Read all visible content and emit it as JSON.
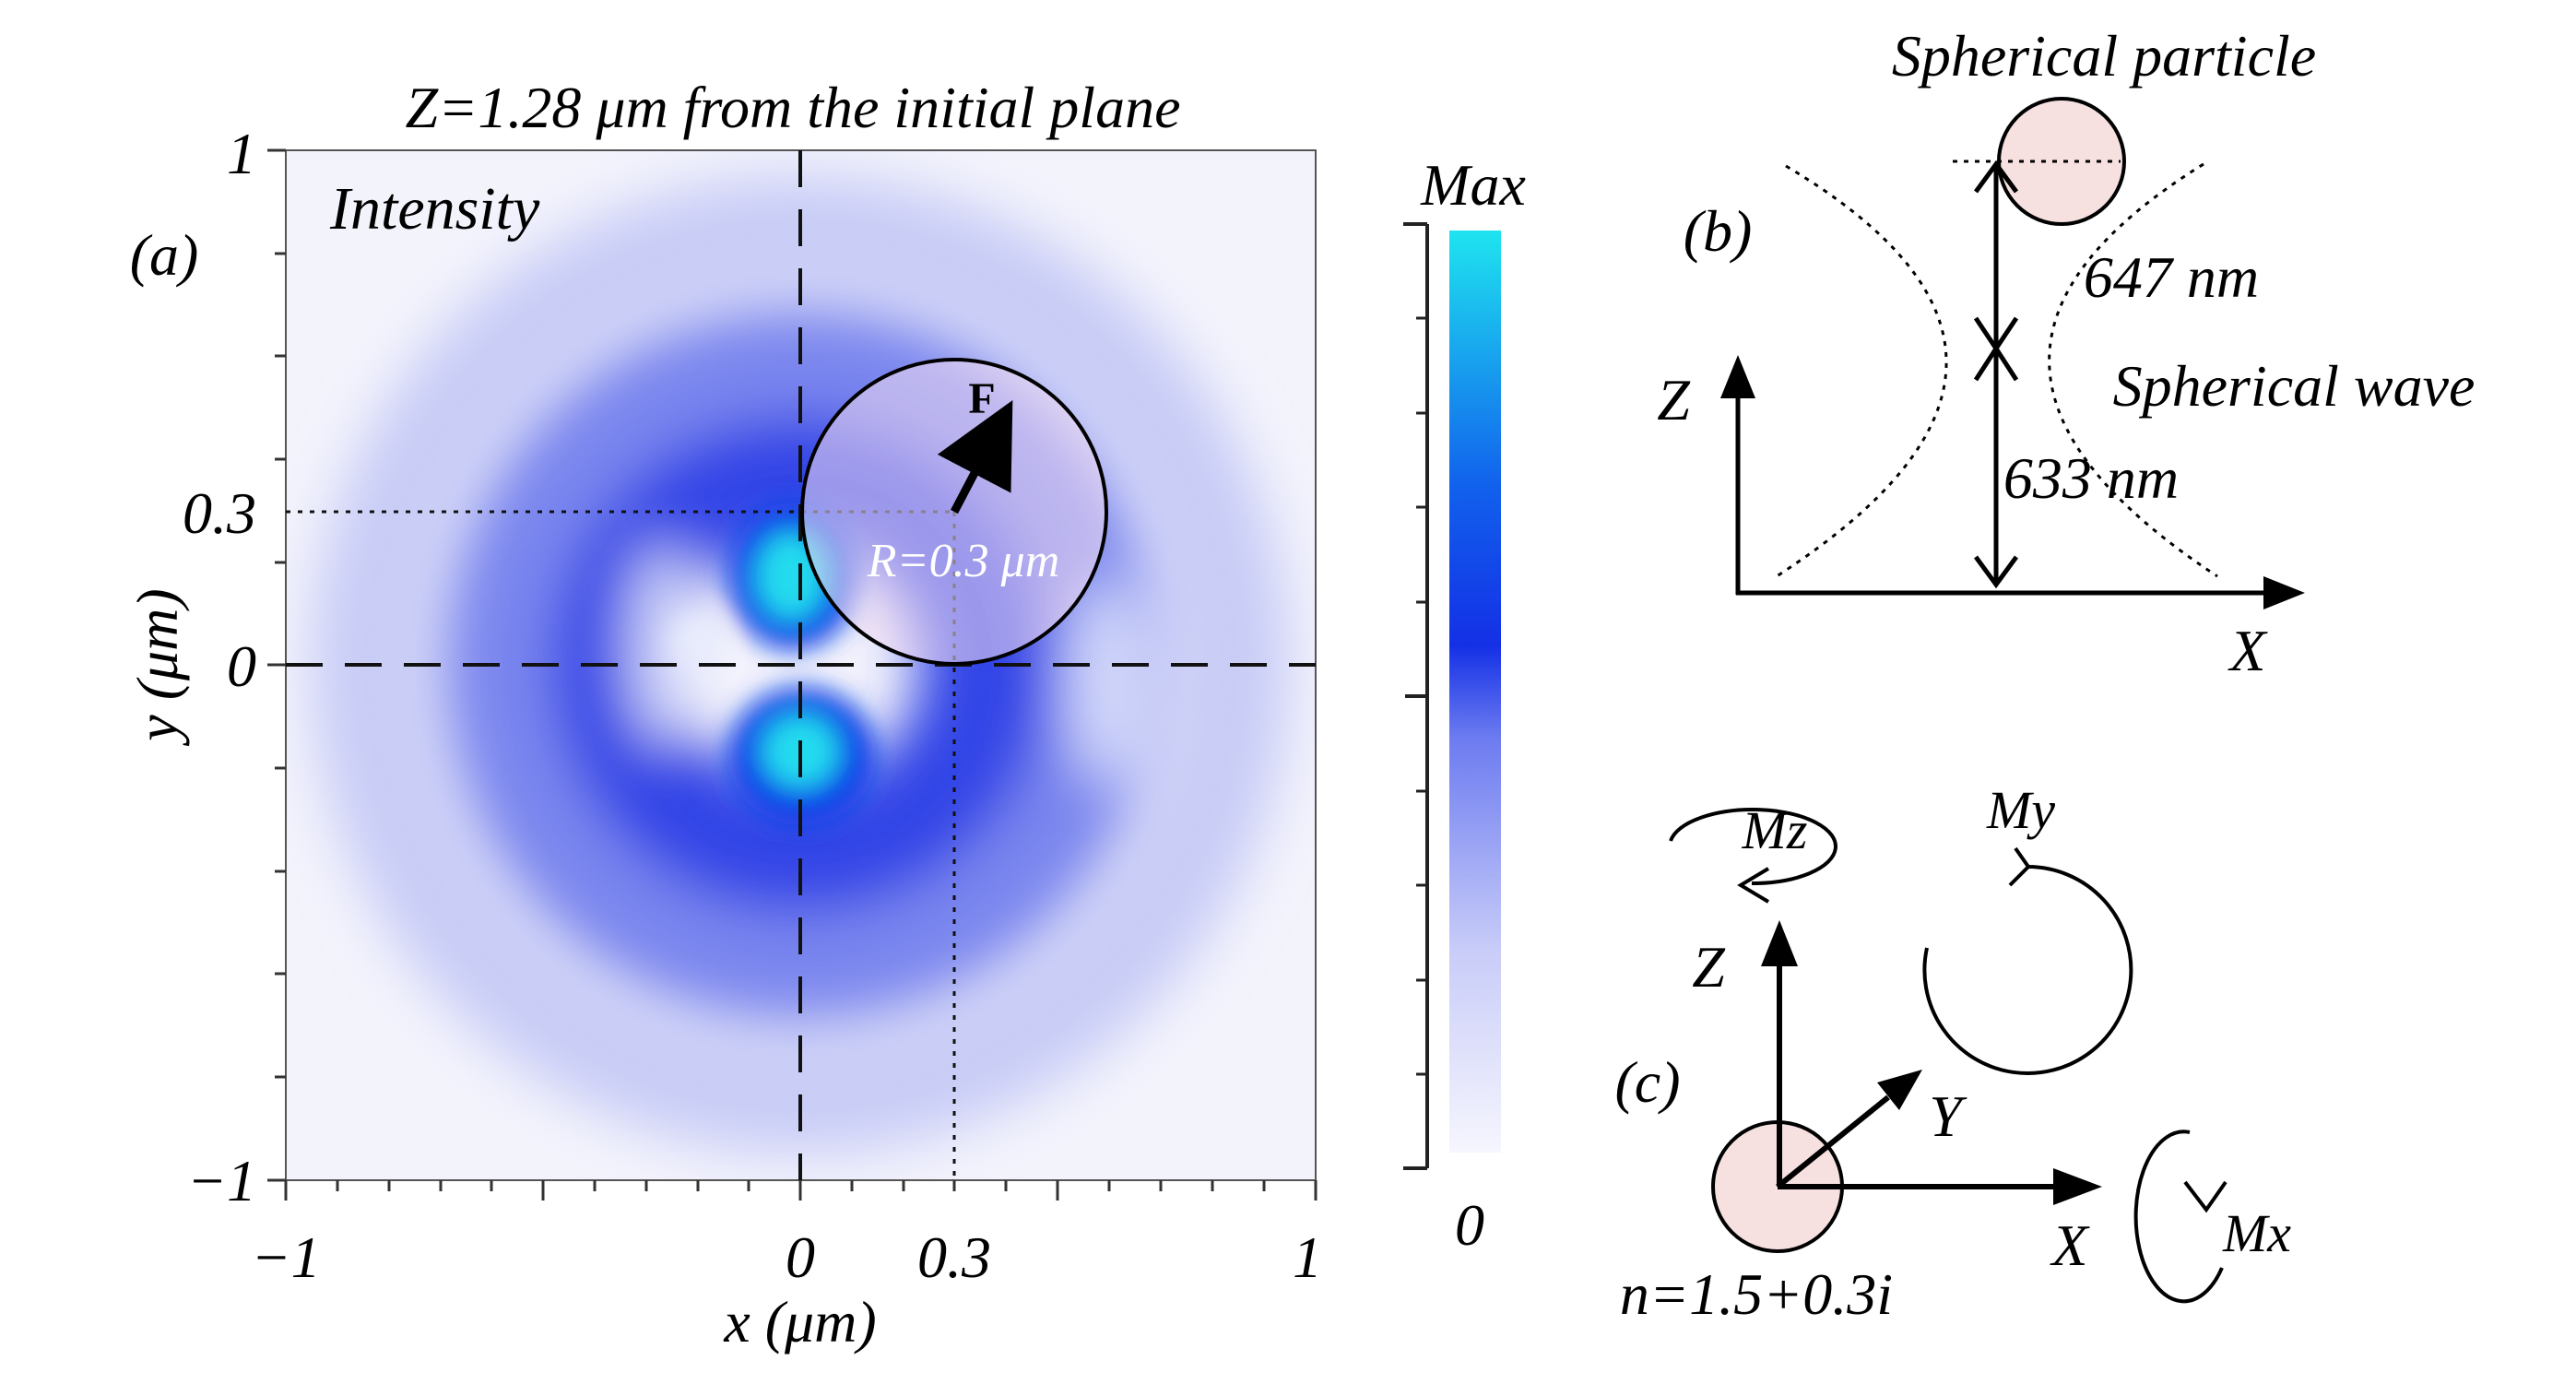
{
  "panel_a": {
    "title": "Z=1.28 μm from the initial plane",
    "panel_label": "(a)",
    "map_label": "Intensity",
    "xlabel": "x (μm)",
    "ylabel": "y (μm)",
    "xrange": [
      -1,
      1
    ],
    "yrange": [
      -1,
      1
    ],
    "x_ticks": [
      "−1",
      "0",
      "0.3",
      "1"
    ],
    "y_ticks": [
      "1",
      "0.3",
      "0",
      "−1"
    ],
    "particle_center": [
      0.3,
      0.3
    ],
    "particle_radius_um": 0.3,
    "radius_label": "R=0.3 μm",
    "force_label": "F",
    "colors": {
      "low": "#f4f4fd",
      "mid": "#1f36e6",
      "peak": "#20e2ee",
      "particle_fill": "#f3dcf0"
    }
  },
  "colorbar": {
    "max_label": "Max",
    "min_label": "0"
  },
  "panel_b": {
    "title": "Spherical particle",
    "panel_label": "(b)",
    "dist_top": "647 nm",
    "dist_bottom": "633 nm",
    "wave_label": "Spherical wave",
    "axis_z": "Z",
    "axis_x": "X",
    "colors": {
      "particle_fill": "#f6e0e0"
    }
  },
  "panel_c": {
    "panel_label": "(c)",
    "mz_label": "Mz",
    "my_label": "My",
    "mx_label": "Mx",
    "axis_z": "Z",
    "axis_y": "Y",
    "axis_x": "X",
    "index_label": "n=1.5+0.3i",
    "colors": {
      "particle_fill": "#f6e0e0"
    }
  }
}
